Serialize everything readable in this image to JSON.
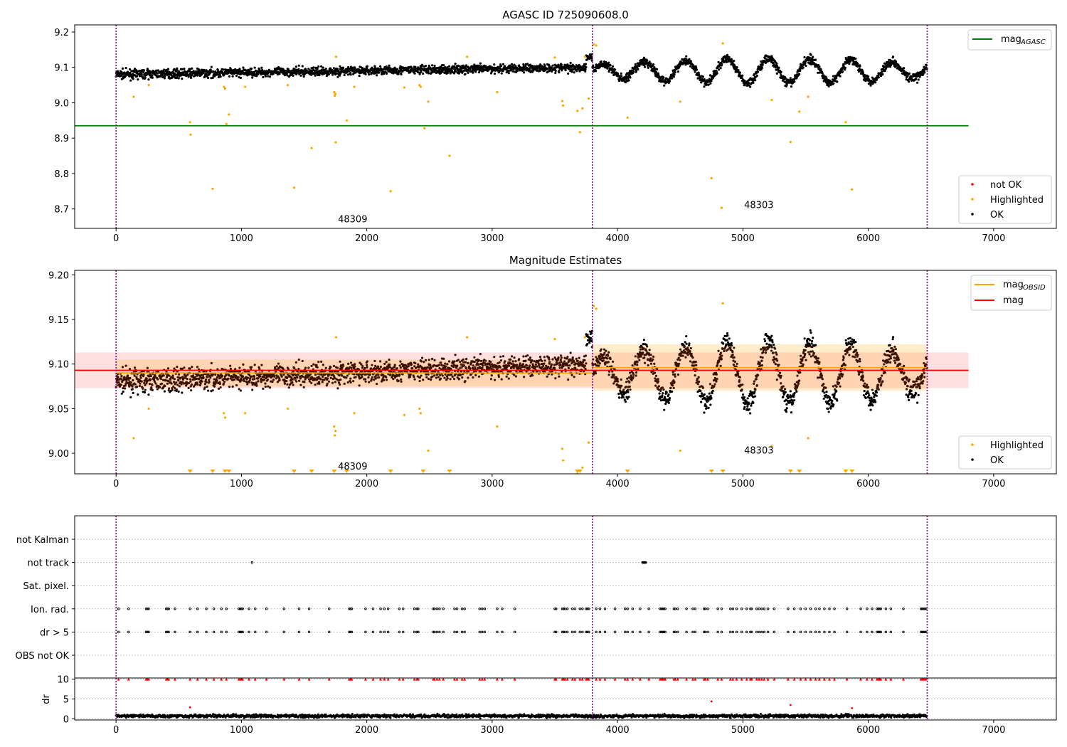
{
  "chart_data": [
    {
      "type": "scatter",
      "title": "AGASC ID 725090608.0",
      "xlim": [
        -330,
        7500
      ],
      "ylim": [
        8.645,
        9.22
      ],
      "yticks": [
        8.7,
        8.8,
        8.9,
        9.0,
        9.1,
        9.2
      ],
      "xticks": [
        0,
        1000,
        2000,
        3000,
        4000,
        5000,
        6000,
        7000
      ],
      "obs_boundaries": [
        0,
        3800,
        6470
      ],
      "annotations": [
        {
          "text": "48309",
          "x": 1770,
          "y": 8.67
        },
        {
          "text": "48303",
          "x": 5010,
          "y": 8.71
        }
      ],
      "reference_lines": [
        {
          "name": "mag_AGASC",
          "value": 8.935,
          "x_range": [
            -330,
            6800
          ],
          "color": "#008000"
        }
      ],
      "series": [
        {
          "name": "OK",
          "color": "#000000",
          "segments": [
            {
              "x_range": [
                0,
                3750
              ],
              "level": 9.09,
              "noise": 0.012,
              "trend": 0.02
            },
            {
              "x_range": [
                3750,
                3800
              ],
              "level": 9.13,
              "noise": 0.01,
              "trend": 0
            },
            {
              "x_range": [
                3800,
                6470
              ],
              "level": 9.09,
              "noise": 0.012,
              "osc_amp": 0.035,
              "osc_period": 330
            }
          ]
        },
        {
          "name": "Highlighted",
          "color": "#ffa500",
          "points": [
            [
              140,
              9.017
            ],
            [
              260,
              9.05
            ],
            [
              590,
              8.945
            ],
            [
              595,
              8.91
            ],
            [
              770,
              8.757
            ],
            [
              860,
              9.045
            ],
            [
              870,
              9.04
            ],
            [
              880,
              8.94
            ],
            [
              900,
              8.967
            ],
            [
              1030,
              9.045
            ],
            [
              1370,
              9.05
            ],
            [
              1420,
              8.76
            ],
            [
              1560,
              8.872
            ],
            [
              1740,
              9.03
            ],
            [
              1745,
              9.02
            ],
            [
              1750,
              9.025
            ],
            [
              1752,
              8.888
            ],
            [
              1755,
              9.13
            ],
            [
              1840,
              8.95
            ],
            [
              1900,
              9.045
            ],
            [
              2190,
              8.75
            ],
            [
              2300,
              9.043
            ],
            [
              2420,
              9.05
            ],
            [
              2430,
              9.045
            ],
            [
              2460,
              8.928
            ],
            [
              2490,
              9.003
            ],
            [
              2660,
              8.85
            ],
            [
              2800,
              9.13
            ],
            [
              3040,
              9.03
            ],
            [
              3500,
              9.128
            ],
            [
              3560,
              9.005
            ],
            [
              3565,
              8.992
            ],
            [
              3680,
              8.977
            ],
            [
              3700,
              8.917
            ],
            [
              3720,
              8.984
            ],
            [
              3740,
              9.13
            ],
            [
              3770,
              9.012
            ],
            [
              3810,
              9.165
            ],
            [
              3830,
              9.162
            ],
            [
              4080,
              8.958
            ],
            [
              4500,
              9.003
            ],
            [
              4750,
              8.787
            ],
            [
              4830,
              8.703
            ],
            [
              4840,
              9.168
            ],
            [
              5230,
              9.008
            ],
            [
              5450,
              8.975
            ],
            [
              5520,
              9.017
            ],
            [
              5380,
              8.889
            ],
            [
              5820,
              8.945
            ],
            [
              5870,
              8.755
            ]
          ]
        },
        {
          "name": "not OK",
          "color": "#ff0000",
          "points": []
        }
      ],
      "legend": [
        {
          "label": "not OK",
          "color": "#ff0000",
          "kind": "marker"
        },
        {
          "label": "Highlighted",
          "color": "#ffa500",
          "kind": "marker"
        },
        {
          "label": "OK",
          "color": "#000000",
          "kind": "marker"
        }
      ],
      "legend_top": {
        "base": "mag",
        "sub": "AGASC",
        "color": "#008000"
      },
      "legend_placement": "top-right / lower-right"
    },
    {
      "type": "scatter",
      "title": "Magnitude Estimates",
      "xlim": [
        -330,
        7500
      ],
      "ylim": [
        8.977,
        9.205
      ],
      "yticks": [
        9.0,
        9.05,
        9.1,
        9.15,
        9.2
      ],
      "yticklabels": [
        "9.00",
        "9.05",
        "9.10",
        "9.15",
        "9.20"
      ],
      "xticks": [
        0,
        1000,
        2000,
        3000,
        4000,
        5000,
        6000,
        7000
      ],
      "obs_boundaries": [
        0,
        3800,
        6470
      ],
      "annotations": [
        {
          "text": "48309",
          "x": 1770,
          "y": 8.985
        },
        {
          "text": "48303",
          "x": 5010,
          "y": 9.003
        }
      ],
      "bands": [
        {
          "name": "mag band",
          "x_range": [
            -330,
            6800
          ],
          "y_range": [
            9.073,
            9.113
          ],
          "color": "rgba(255,0,0,0.12)"
        },
        {
          "name": "obsid 48309 band",
          "x_range": [
            0,
            3800
          ],
          "y_range": [
            9.075,
            9.105
          ],
          "color": "rgba(255,165,0,0.2)"
        },
        {
          "name": "obsid 48303 band",
          "x_range": [
            3800,
            6470
          ],
          "y_range": [
            9.07,
            9.122
          ],
          "color": "rgba(255,165,0,0.2)"
        }
      ],
      "reference_lines": [
        {
          "name": "mag_OBSID 48309",
          "value": 9.09,
          "x_range": [
            0,
            3800
          ],
          "color": "#ffa500"
        },
        {
          "name": "mag_OBSID 48303",
          "value": 9.096,
          "x_range": [
            3800,
            6470
          ],
          "color": "#ffa500"
        },
        {
          "name": "mag",
          "value": 9.093,
          "x_range": [
            -330,
            6800
          ],
          "color": "#ff0000"
        }
      ],
      "series": [
        {
          "name": "OK",
          "color": "#000000",
          "mirror_of_panel": 1
        },
        {
          "name": "Highlighted",
          "color": "#ffa500",
          "mirror_of_panel": 1
        },
        {
          "name": "Highlighted (below range)",
          "color": "#ffa500",
          "marker": "triangle-down",
          "x": [
            590,
            770,
            870,
            900,
            1420,
            1560,
            1740,
            1840,
            2190,
            2450,
            2660,
            3680,
            3700,
            4080,
            4750,
            4840,
            5380,
            5450,
            5820,
            5870
          ]
        }
      ],
      "legend": [
        {
          "label": "Highlighted",
          "color": "#ffa500",
          "kind": "marker"
        },
        {
          "label": "OK",
          "color": "#000000",
          "kind": "marker"
        }
      ],
      "legend_top": [
        {
          "base": "mag",
          "sub": "OBSID",
          "color": "#ffa500"
        },
        {
          "base": "mag",
          "sub": "",
          "color": "#ff0000"
        }
      ]
    },
    {
      "type": "scatter",
      "title": "",
      "xlim": [
        -330,
        7500
      ],
      "categories": [
        "not Kalman",
        "not track",
        "Sat. pixel.",
        "Ion. rad.",
        "dr > 5",
        "OBS not OK"
      ],
      "obs_boundaries": [
        0,
        3800,
        6470
      ],
      "flag_events": {
        "not track": [
          1085,
          4200,
          4205,
          4210,
          4215,
          4220,
          4225
        ],
        "Ion. rad.": [
          20,
          100,
          240,
          250,
          260,
          400,
          410,
          420,
          470,
          590,
          650,
          720,
          780,
          840,
          880,
          980,
          990,
          1000,
          1010,
          1060,
          1110,
          1200,
          1340,
          1460,
          1540,
          1700,
          1860,
          1870,
          1880,
          1990,
          2050,
          2110,
          2140,
          2170,
          2260,
          2290,
          2380,
          2400,
          2410,
          2530,
          2540,
          2560,
          2580,
          2610,
          2700,
          2720,
          2760,
          2780,
          2900,
          2920,
          2940,
          3040,
          3080,
          3180,
          3500,
          3510,
          3560,
          3570,
          3580,
          3600,
          3640,
          3660,
          3700,
          3720,
          3750,
          3760,
          3770,
          3830,
          3860,
          3900,
          3980,
          4060,
          4080,
          4120,
          4180,
          4250,
          4340,
          4350,
          4360,
          4370,
          4380,
          4450,
          4460,
          4480,
          4550,
          4600,
          4620,
          4690,
          4700,
          4720,
          4800,
          4830,
          4900,
          4920,
          4950,
          4990,
          5030,
          5060,
          5070,
          5110,
          5130,
          5150,
          5170,
          5200,
          5250,
          5360,
          5410,
          5460,
          5500,
          5540,
          5580,
          5610,
          5650,
          5690,
          5730,
          5830,
          5940,
          5990,
          6030,
          6070,
          6080,
          6090,
          6100,
          6140,
          6180,
          6280,
          6420,
          6430,
          6440,
          6450,
          6460
        ],
        "dr > 5": [
          20,
          100,
          240,
          250,
          260,
          400,
          410,
          420,
          470,
          590,
          650,
          720,
          780,
          840,
          880,
          980,
          990,
          1000,
          1010,
          1060,
          1110,
          1200,
          1340,
          1460,
          1540,
          1700,
          1860,
          1870,
          1880,
          1990,
          2050,
          2110,
          2140,
          2170,
          2260,
          2290,
          2380,
          2400,
          2410,
          2530,
          2540,
          2560,
          2580,
          2610,
          2700,
          2720,
          2760,
          2780,
          2900,
          2920,
          2940,
          3040,
          3080,
          3180,
          3500,
          3510,
          3560,
          3570,
          3580,
          3600,
          3640,
          3660,
          3700,
          3720,
          3750,
          3760,
          3770,
          3830,
          3860,
          3900,
          3980,
          4060,
          4080,
          4120,
          4180,
          4250,
          4340,
          4350,
          4360,
          4370,
          4380,
          4450,
          4460,
          4480,
          4550,
          4600,
          4620,
          4690,
          4700,
          4720,
          4800,
          4830,
          4900,
          4920,
          4950,
          4990,
          5030,
          5060,
          5070,
          5110,
          5130,
          5150,
          5170,
          5200,
          5250,
          5360,
          5410,
          5460,
          5500,
          5540,
          5580,
          5610,
          5650,
          5690,
          5730,
          5830,
          5940,
          5990,
          6030,
          6070,
          6080,
          6090,
          6100,
          6140,
          6180,
          6280,
          6420,
          6430,
          6440,
          6450,
          6460
        ]
      }
    },
    {
      "type": "scatter",
      "title": "",
      "ylabel": "dr",
      "xlim": [
        -330,
        7500
      ],
      "ylim": [
        -0.3,
        10.3
      ],
      "yticks": [
        0,
        5,
        10
      ],
      "xticks": [
        0,
        1000,
        2000,
        3000,
        4000,
        5000,
        6000,
        7000
      ],
      "obs_boundaries": [
        0,
        3800,
        6470
      ],
      "clip_value": 10,
      "series": [
        {
          "name": "dr OK",
          "color": "#000000",
          "level": 0.7,
          "noise": 0.4
        },
        {
          "name": "dr not OK",
          "color": "#ff0000",
          "points": [
            [
              590,
              2.9
            ],
            [
              4750,
              4.4
            ],
            [
              5380,
              3.5
            ],
            [
              5870,
              2.7
            ]
          ]
        }
      ]
    }
  ]
}
